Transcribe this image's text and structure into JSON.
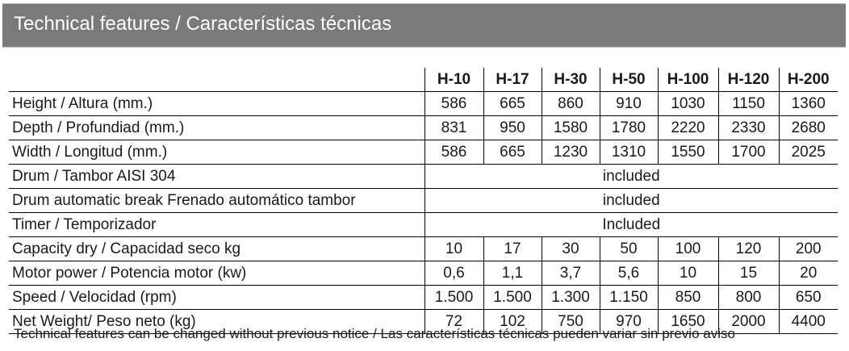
{
  "header": {
    "title": "Technical features / Características técnicas"
  },
  "table": {
    "models": [
      "H-10",
      "H-17",
      "H-30",
      "H-50",
      "H-100",
      "H-120",
      "H-200"
    ],
    "rows": [
      {
        "label": "Height  /  Altura (mm.)",
        "values": [
          "586",
          "665",
          "860",
          "910",
          "1030",
          "1150",
          "1360"
        ]
      },
      {
        "label": "Depth / Profundiad  (mm.)",
        "values": [
          "831",
          "950",
          "1580",
          "1780",
          "2220",
          "2330",
          "2680"
        ]
      },
      {
        "label": "Width / Longitud (mm.)",
        "values": [
          "586",
          "665",
          "1230",
          "1310",
          "1550",
          "1700",
          "2025"
        ]
      },
      {
        "label": "Drum / Tambor  AISI 304",
        "merged": "included"
      },
      {
        "label": "Drum automatic break Frenado automático tambor",
        "merged": "included"
      },
      {
        "label": "Timer / Temporizador",
        "merged": "Included"
      },
      {
        "label": "Capacity dry / Capacidad seco kg",
        "values": [
          "10",
          "17",
          "30",
          "50",
          "100",
          "120",
          "200"
        ]
      },
      {
        "label": "Motor power / Potencia motor (kw)",
        "values": [
          "0,6",
          "1,1",
          "3,7",
          "5,6",
          "10",
          "15",
          "20"
        ]
      },
      {
        "label": "Speed / Velocidad (rpm)",
        "values": [
          "1.500",
          "1.500",
          "1.300",
          "1.150",
          "850",
          "800",
          "650"
        ]
      },
      {
        "label": "Net Weight/  Peso neto (kg)",
        "values": [
          "72",
          "102",
          "750",
          "970",
          "1650",
          "2000",
          "4400"
        ]
      }
    ]
  },
  "footnote": "Technical features can be changed without previous notice / Las características técnicas pueden variar sin previo aviso"
}
